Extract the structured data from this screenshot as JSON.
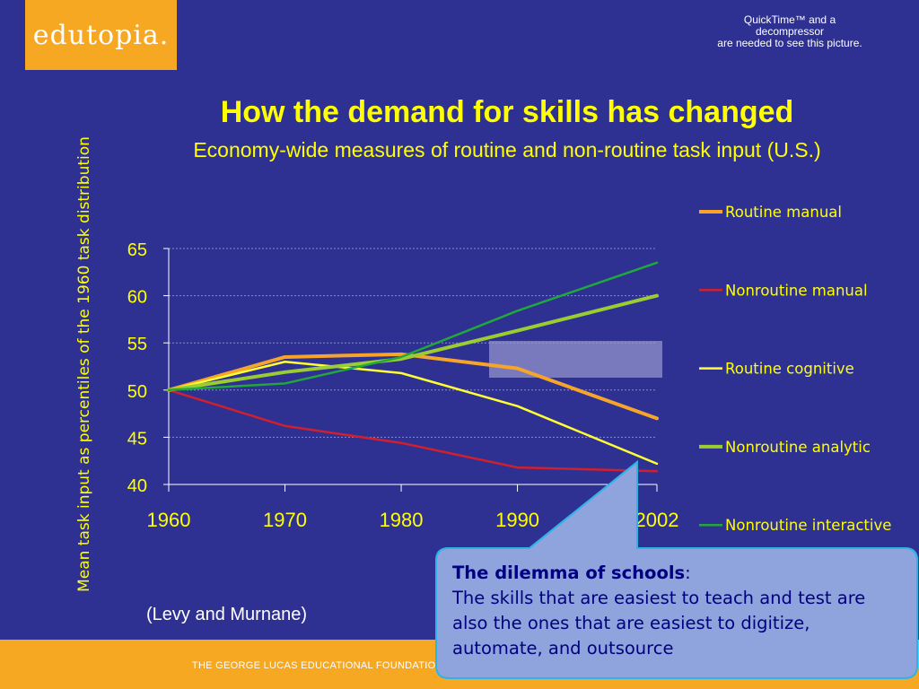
{
  "logo": {
    "text": "edutopia."
  },
  "quicktime_notice": {
    "lines": [
      "QuickTime™ and a",
      "decompressor",
      "are needed to see this picture."
    ]
  },
  "title": "How the demand for skills has changed",
  "subtitle": "Economy-wide measures of routine and non-routine task input (U.S.)",
  "source": "(Levy and Murnane)",
  "callout": {
    "heading": "The dilemma of schools",
    "heading_suffix": ":",
    "body": "The skills that are easiest to teach and test are also the ones that are easiest to digitize, automate, and outsource"
  },
  "footer": "THE GEORGE LUCAS EDUCATIONAL FOUNDATION    |    WHAT WORKS IN PUBLIC EDUCATION    |    EDUTOPIA.ORG",
  "colors": {
    "background": "#2e3192",
    "accent_orange": "#f7a823",
    "title_yellow": "#ffff00",
    "callout_fill": "#8fa3dc",
    "callout_border": "#2fb3e6"
  },
  "chart_data": {
    "type": "line",
    "ylabel": "Mean task input as percentiles of  the 1960 task distribution",
    "xlabel": "",
    "x": [
      1960,
      1970,
      1980,
      1990,
      2002
    ],
    "x_tick_labels": [
      "1960",
      "1970",
      "1980",
      "1990",
      "2002"
    ],
    "ylim": [
      40,
      65
    ],
    "y_ticks": [
      40,
      45,
      50,
      55,
      60,
      65
    ],
    "grid": "horizontal dotted",
    "legend_position": "right",
    "series": [
      {
        "name": "Routine manual",
        "color": "#f7a42b",
        "width": 4,
        "values": [
          50,
          53.5,
          53.8,
          52.3,
          47
        ]
      },
      {
        "name": "Nonroutine manual",
        "color": "#d0202e",
        "width": 2.5,
        "values": [
          50,
          46.2,
          44.4,
          41.8,
          41.4
        ]
      },
      {
        "name": "Routine cognitive",
        "color": "#ffff33",
        "width": 2.5,
        "values": [
          50,
          53,
          51.8,
          48.3,
          42.2
        ]
      },
      {
        "name": "Nonroutine analytic",
        "color": "#9acd32",
        "width": 4,
        "values": [
          50,
          51.9,
          53.3,
          56.3,
          60
        ]
      },
      {
        "name": "Nonroutine interactive",
        "color": "#22a83a",
        "width": 2.5,
        "values": [
          50,
          50.7,
          53.5,
          58.4,
          63.5
        ]
      }
    ]
  }
}
